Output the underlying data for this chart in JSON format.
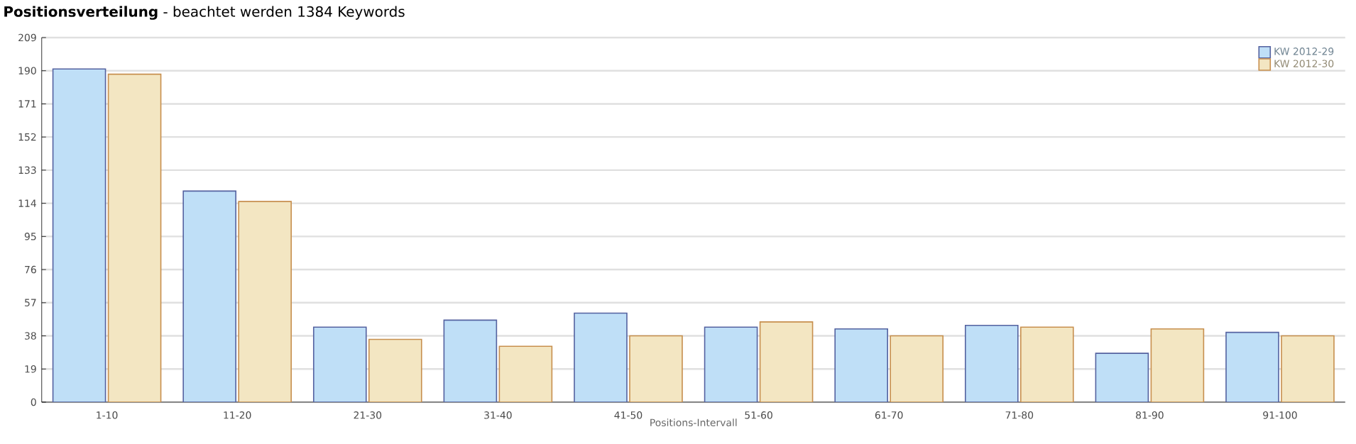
{
  "chart_data": {
    "type": "bar",
    "title": "**Positionsverteilung** - beachtet werden 1384 Keywords",
    "xlabel": "Positions-Intervall",
    "categories": [
      "1-10",
      "11-20",
      "21-30",
      "31-40",
      "41-50",
      "51-60",
      "61-70",
      "71-80",
      "81-90",
      "91-100"
    ],
    "series": [
      {
        "name": "KW 2012-29",
        "color": "#bfdff7",
        "values": [
          191,
          121,
          43,
          47,
          51,
          43,
          42,
          44,
          28,
          40
        ]
      },
      {
        "name": "KW 2012-30",
        "color": "#f3e6c2",
        "values": [
          188,
          115,
          36,
          32,
          38,
          46,
          38,
          43,
          42,
          38
        ]
      }
    ],
    "ylim": [
      0,
      209
    ],
    "yticks": [
      0,
      19,
      38,
      57,
      76,
      95,
      114,
      133,
      152,
      171,
      190,
      209
    ],
    "grid": "y",
    "legend": "top right"
  }
}
